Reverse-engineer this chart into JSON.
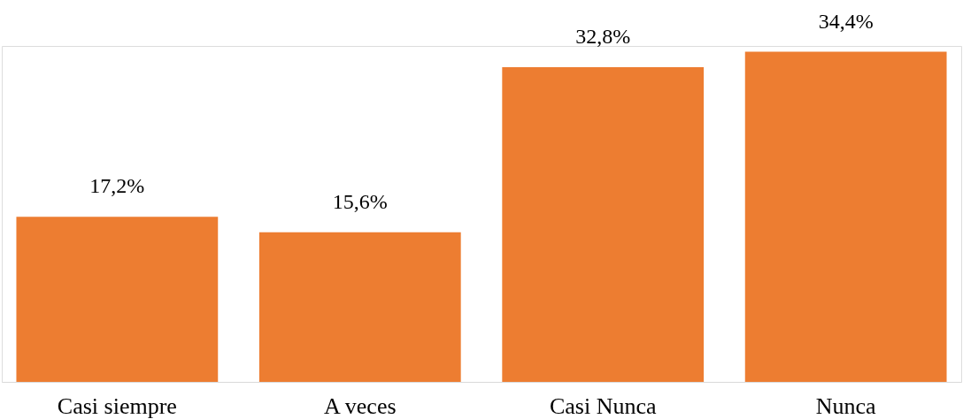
{
  "chart_data": {
    "type": "bar",
    "categories": [
      "Casi siempre",
      "A veces",
      "Casi Nunca",
      "Nunca"
    ],
    "values": [
      17.2,
      15.6,
      32.8,
      34.4
    ],
    "color": "#ed7d31",
    "value_labels": [
      "17,2%",
      "15,6%",
      "32,8%",
      "34,4%"
    ]
  }
}
